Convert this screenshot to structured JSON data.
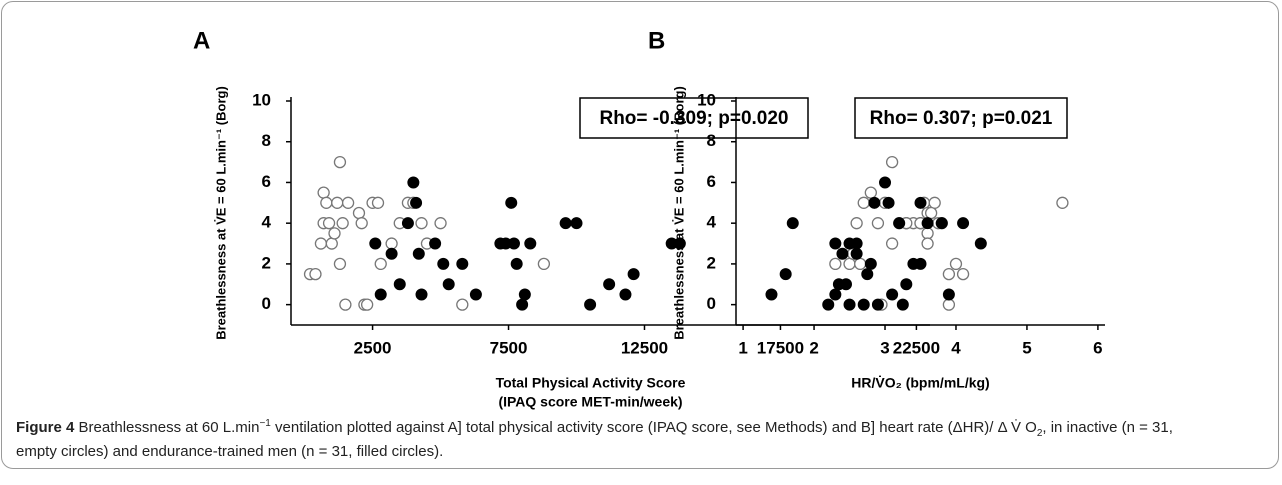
{
  "chart_data": [
    {
      "type": "scatter",
      "panel": "A",
      "ylabel": "Breathlessness at V̇E = 60 L.min⁻¹ (Borg)",
      "xlabel": [
        "Total Physical Activity Score",
        "(IPAQ score MET-min/week)"
      ],
      "annotation": "Rho= -0.309; p=0.020",
      "xlim": [
        -500,
        23000
      ],
      "xticks": [
        2500,
        7500,
        12500,
        17500,
        22500
      ],
      "ylim": [
        -1,
        10
      ],
      "yticks": [
        0,
        2,
        4,
        6,
        8,
        10
      ],
      "series": [
        {
          "marker": "open",
          "color": "#777777",
          "x": [
            200,
            400,
            600,
            700,
            700,
            800,
            900,
            1000,
            1100,
            1200,
            1300,
            1300,
            1400,
            1500,
            1600,
            2000,
            2100,
            2200,
            2500,
            2700,
            2800,
            3200,
            3500,
            3800,
            4000,
            4500,
            5000,
            5800,
            8800,
            4300,
            2300
          ],
          "values": [
            1.5,
            1.5,
            3,
            4,
            5.5,
            5,
            4,
            3,
            3.5,
            5,
            7,
            2,
            4,
            0,
            5,
            4.5,
            4,
            0,
            5,
            5,
            2,
            3,
            4,
            5,
            5,
            3,
            4,
            0,
            2,
            4,
            0
          ]
        },
        {
          "marker": "filled",
          "color": "#000000",
          "x": [
            2600,
            2800,
            3200,
            3500,
            3800,
            4000,
            4100,
            4200,
            4300,
            4800,
            5100,
            5300,
            5800,
            6300,
            7200,
            7600,
            7700,
            7800,
            8000,
            8100,
            8300,
            9600,
            10000,
            10500,
            11200,
            11800,
            12100,
            13500,
            13800,
            22000,
            7400
          ],
          "values": [
            3,
            0.5,
            2.5,
            1,
            4,
            6,
            5,
            2.5,
            0.5,
            3,
            2,
            1,
            2,
            0.5,
            3,
            5,
            3,
            2,
            0,
            0.5,
            3,
            4,
            4,
            0,
            1,
            0.5,
            1.5,
            3,
            3,
            0,
            3
          ]
        }
      ]
    },
    {
      "type": "scatter",
      "panel": "B",
      "ylabel": "Breathlessness at V̇E = 60 L.min⁻¹ (Borg)",
      "xlabel": [
        "HR/V̇O₂ (bpm/mL/kg)"
      ],
      "annotation": "Rho= 0.307; p=0.021",
      "xlim": [
        0.9,
        6.1
      ],
      "xticks": [
        1,
        2,
        3,
        4,
        5,
        6
      ],
      "ylim": [
        -1,
        10
      ],
      "yticks": [
        0,
        2,
        4,
        6,
        8,
        10
      ],
      "series": [
        {
          "marker": "open",
          "color": "#777777",
          "x": [
            2.3,
            2.5,
            2.55,
            2.6,
            2.65,
            2.7,
            2.8,
            2.95,
            3.0,
            3.1,
            3.1,
            3.2,
            3.3,
            3.4,
            3.5,
            3.55,
            3.6,
            3.6,
            3.6,
            3.7,
            3.75,
            3.8,
            3.9,
            3.9,
            4.0,
            4.1,
            5.5,
            3.5,
            3.3,
            2.9,
            3.65
          ],
          "values": [
            2,
            2,
            2.5,
            4,
            2,
            5,
            5.5,
            0,
            5,
            7,
            3,
            4,
            4,
            4,
            4,
            5,
            3.5,
            3,
            4.5,
            5,
            4,
            4,
            0,
            1.5,
            2,
            1.5,
            5,
            4,
            4,
            4,
            4.5
          ]
        },
        {
          "marker": "filled",
          "color": "#000000",
          "x": [
            1.4,
            1.6,
            1.7,
            2.2,
            2.3,
            2.3,
            2.35,
            2.4,
            2.45,
            2.5,
            2.5,
            2.6,
            2.6,
            2.7,
            2.75,
            2.85,
            2.9,
            2.8,
            3.0,
            3.05,
            3.1,
            3.2,
            3.3,
            3.4,
            3.5,
            3.5,
            3.6,
            3.8,
            3.9,
            4.1,
            4.35
          ],
          "values": [
            0.5,
            1.5,
            4,
            0,
            0.5,
            3,
            1,
            2.5,
            1,
            3,
            0,
            3,
            2.5,
            0,
            1.5,
            5,
            0,
            2,
            6,
            5,
            0.5,
            4,
            1,
            2,
            2,
            5,
            4,
            4,
            0.5,
            4,
            3
          ]
        }
      ]
    }
  ],
  "caption": {
    "label": "Figure 4",
    "parts": [
      {
        "text": " Breathlessness at 60 L.min",
        "style": "normal"
      },
      {
        "text": "−1",
        "style": "sup"
      },
      {
        "text": " ventilation plotted against A] total physical activity score (IPAQ score, see Methods) and B] heart rate (ΔHR)/ Δ V̇ O",
        "style": "normal"
      },
      {
        "text": "2",
        "style": "sub"
      },
      {
        "text": ", in inactive (n = 31, empty circles) and endurance-trained men (n = 31, filled circles).",
        "style": "normal"
      }
    ]
  }
}
